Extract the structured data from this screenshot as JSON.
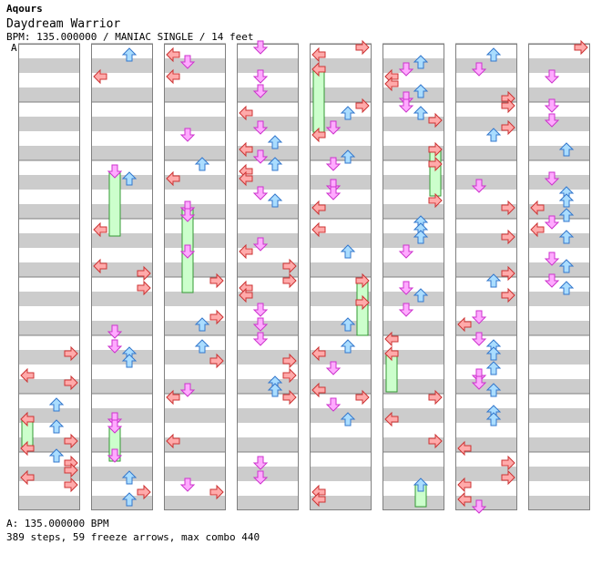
{
  "header": {
    "artist": "Aqours",
    "title": "Daydream Warrior",
    "meta": "BPM: 135.000000 / MANIAC SINGLE / 14 feet"
  },
  "bpm_marker": "A",
  "footer": {
    "bpm_line": "A: 135.000000 BPM",
    "stats": "389 steps, 59 freeze arrows, max combo 440"
  },
  "colors": {
    "stripe": "#cccccc",
    "column_bg": "#ffffff",
    "border": "#808080",
    "left_arrow": "#ffaaaa",
    "down_arrow": "#ffaaff",
    "up_arrow": "#aaddff",
    "right_arrow": "#ffaaaa",
    "freeze_fill": "#ccffcc",
    "freeze_border": "#339933"
  },
  "chart_data": {
    "type": "step-chart",
    "mode": "SINGLE",
    "difficulty": "MANIAC",
    "level": 14,
    "bpm": 135.0,
    "lanes": [
      "left",
      "down",
      "up",
      "right"
    ],
    "columns": 8,
    "measures_per_column": 8,
    "steps": 389,
    "freeze_arrows": 59,
    "max_combo": 440,
    "note_pattern_seed": 20231
  }
}
